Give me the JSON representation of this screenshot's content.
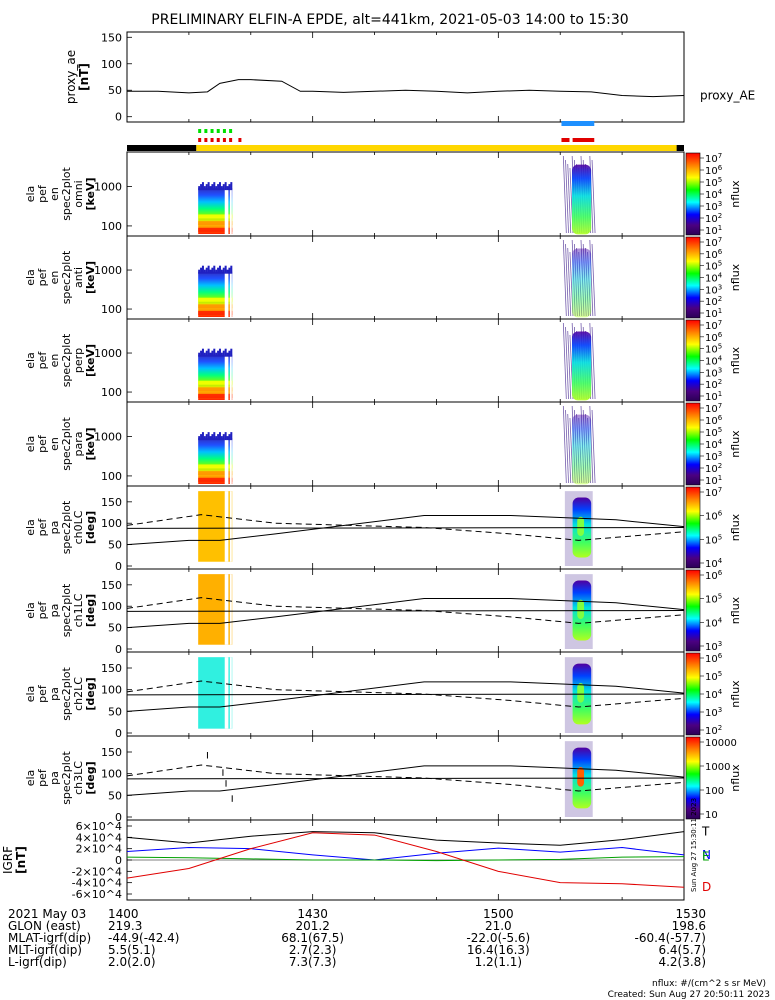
{
  "title": "PRELIMINARY ELFIN-A EPDE, alt=441km, 2021-05-03 14:00 to 15:30",
  "created": "Created: Sun Aug 27 20:50:11 2023",
  "units_note": "nflux: #/(cm^2 s sr MeV)",
  "side_stamp": "Sun Aug 27 15:30:11 2023",
  "colors": {
    "ae_line": "#000000",
    "bar_black": "#000000",
    "bar_yellow": "#ffd700",
    "bar_green": "#00e000",
    "bar_red": "#e00000",
    "bar_blue": "#1e90ff",
    "grf_N": "#0000ff",
    "grf_E": "#00a000",
    "grf_D": "#e00000",
    "grf_T": "#000000"
  },
  "chart_data": [
    {
      "type": "line",
      "name": "proxy_ae",
      "ylabel": "proxy_ae [nT]",
      "legend": "proxy_AE",
      "yticks": [
        "150",
        "100",
        "50",
        "0"
      ],
      "ylim": [
        -10,
        160
      ],
      "x_minutes": [
        0,
        5,
        10,
        13,
        15,
        18,
        20,
        25,
        28,
        30,
        35,
        40,
        45,
        50,
        55,
        60,
        65,
        70,
        75,
        80,
        85,
        90
      ],
      "values": [
        48,
        48,
        45,
        47,
        63,
        70,
        70,
        67,
        48,
        48,
        46,
        48,
        50,
        48,
        45,
        48,
        50,
        48,
        47,
        40,
        38,
        40
      ]
    },
    {
      "type": "heatmap",
      "name": "omni",
      "ylabel": [
        "ela",
        "pef",
        "en",
        "spec2plot",
        "omni",
        "[keV]"
      ],
      "yticks": [
        "1000",
        "100"
      ],
      "colorbar": {
        "label": "nflux",
        "ticks": [
          "10^7",
          "10^6",
          "10^5",
          "10^4",
          "10^3",
          "10^2",
          "10^1"
        ]
      },
      "intervals": [
        [
          11.5,
          17.0
        ],
        [
          70.5,
          75.5
        ]
      ]
    },
    {
      "type": "heatmap",
      "name": "anti",
      "ylabel": [
        "ela",
        "pef",
        "en",
        "spec2plot",
        "anti",
        "[keV]"
      ],
      "yticks": [
        "1000",
        "100"
      ],
      "colorbar": {
        "label": "nflux",
        "ticks": [
          "10^7",
          "10^6",
          "10^5",
          "10^4",
          "10^3",
          "10^2",
          "10^1"
        ]
      },
      "intervals": [
        [
          11.5,
          17.0
        ],
        [
          70.5,
          75.5
        ]
      ]
    },
    {
      "type": "heatmap",
      "name": "perp",
      "ylabel": [
        "ela",
        "pef",
        "en",
        "spec2plot",
        "perp",
        "[keV]"
      ],
      "yticks": [
        "1000",
        "100"
      ],
      "colorbar": {
        "label": "nflux",
        "ticks": [
          "10^7",
          "10^6",
          "10^5",
          "10^4",
          "10^3",
          "10^2",
          "10^1"
        ]
      },
      "intervals": [
        [
          11.5,
          17.0
        ],
        [
          70.5,
          75.5
        ]
      ]
    },
    {
      "type": "heatmap",
      "name": "para",
      "ylabel": [
        "ela",
        "pef",
        "en",
        "spec2plot",
        "para",
        "[keV]"
      ],
      "yticks": [
        "1000",
        "100"
      ],
      "colorbar": {
        "label": "nflux",
        "ticks": [
          "10^7",
          "10^6",
          "10^5",
          "10^4",
          "10^3",
          "10^2",
          "10^1"
        ]
      },
      "intervals": [
        [
          11.5,
          17.0
        ],
        [
          70.5,
          75.5
        ]
      ]
    },
    {
      "type": "heatmap",
      "name": "ch0LC",
      "ylabel": [
        "ela",
        "pef",
        "pa",
        "spec2plot",
        "ch0LC",
        "[deg]"
      ],
      "yticks": [
        "150",
        "100",
        "50",
        "0"
      ],
      "colorbar": {
        "label": "nflux",
        "ticks": [
          "10^7",
          "10^6",
          "10^5",
          "10^4"
        ]
      },
      "intervals": [
        [
          11.5,
          17.0
        ],
        [
          70.5,
          75.5
        ]
      ]
    },
    {
      "type": "heatmap",
      "name": "ch1LC",
      "ylabel": [
        "ela",
        "pef",
        "pa",
        "spec2plot",
        "ch1LC",
        "[deg]"
      ],
      "yticks": [
        "150",
        "100",
        "50",
        "0"
      ],
      "colorbar": {
        "label": "nflux",
        "ticks": [
          "10^6",
          "10^5",
          "10^4",
          "10^3"
        ]
      },
      "intervals": [
        [
          11.5,
          17.0
        ],
        [
          70.5,
          75.5
        ]
      ]
    },
    {
      "type": "heatmap",
      "name": "ch2LC",
      "ylabel": [
        "ela",
        "pef",
        "pa",
        "spec2plot",
        "ch2LC",
        "[deg]"
      ],
      "yticks": [
        "150",
        "100",
        "50",
        "0"
      ],
      "colorbar": {
        "label": "nflux",
        "ticks": [
          "10^6",
          "10^5",
          "10^4",
          "10^3",
          "10^2"
        ]
      },
      "intervals": [
        [
          11.5,
          17.0
        ],
        [
          70.5,
          75.5
        ]
      ]
    },
    {
      "type": "heatmap",
      "name": "ch3LC",
      "ylabel": [
        "ela",
        "pef",
        "pa",
        "spec2plot",
        "ch3LC",
        "[deg]"
      ],
      "yticks": [
        "150",
        "100",
        "50",
        "0"
      ],
      "colorbar": {
        "label": "nflux",
        "ticks": [
          "10000",
          "1000",
          "100",
          "10"
        ]
      },
      "intervals": [
        [
          11.5,
          17.0
        ],
        [
          70.5,
          75.5
        ]
      ]
    },
    {
      "type": "line",
      "name": "IGRF",
      "ylabel": "IGRF [nT]",
      "yticks": [
        "6×10^4",
        "4×10^4",
        "2×10^4",
        "0",
        "-2×10^4",
        "-4×10^4",
        "-6×10^4"
      ],
      "ylim": [
        -60000,
        60000
      ],
      "legend": [
        "T",
        "N",
        "E",
        "D"
      ],
      "x_minutes": [
        0,
        10,
        20,
        30,
        40,
        50,
        60,
        70,
        80,
        90
      ],
      "series": [
        {
          "name": "T",
          "values": [
            40000,
            30000,
            42000,
            50000,
            48000,
            35000,
            30000,
            26000,
            36000,
            50000
          ]
        },
        {
          "name": "N",
          "values": [
            15000,
            22000,
            20000,
            9000,
            0,
            12000,
            21000,
            14000,
            22000,
            9000
          ]
        },
        {
          "name": "E",
          "values": [
            5000,
            4000,
            2000,
            0,
            0,
            -1000,
            0,
            1000,
            5000,
            6000
          ]
        },
        {
          "name": "D",
          "values": [
            -32000,
            -15000,
            20000,
            48000,
            44000,
            15000,
            -20000,
            -40000,
            -42000,
            -48000
          ]
        }
      ]
    }
  ],
  "pa_lines": {
    "solid": [
      [
        0,
        50
      ],
      [
        10,
        60
      ],
      [
        15,
        60
      ],
      [
        24,
        75
      ],
      [
        48,
        118
      ],
      [
        62,
        118
      ],
      [
        79,
        108
      ],
      [
        90,
        92
      ]
    ],
    "dashed": [
      [
        0,
        95
      ],
      [
        12,
        120
      ],
      [
        24,
        100
      ],
      [
        48,
        90
      ],
      [
        62,
        75
      ],
      [
        73,
        60
      ],
      [
        90,
        80
      ]
    ],
    "flat": [
      [
        0,
        88
      ],
      [
        90,
        90
      ]
    ]
  },
  "status_bars": {
    "black_intervals": [
      [
        0,
        11.2
      ],
      [
        88.8,
        90
      ]
    ],
    "yellow_intervals": [
      [
        11.2,
        88.8
      ]
    ],
    "green_ticks": [
      11.5,
      12.5,
      13.5,
      14.5,
      15.5,
      16.5
    ],
    "red_ticks": [
      11.5,
      12.5,
      13.5,
      14.5,
      15.5,
      16.5,
      18.0
    ],
    "red_blocks": [
      [
        70.2,
        71.5
      ],
      [
        72.0,
        75.5
      ]
    ],
    "blue_block": [
      70.2,
      75.5
    ]
  },
  "axis": {
    "time_ticks": [
      {
        "minute": 0,
        "label": "1400"
      },
      {
        "minute": 30,
        "label": "1430"
      },
      {
        "minute": 60,
        "label": "1500"
      },
      {
        "minute": 90,
        "label": "1530"
      }
    ]
  },
  "orbit_table": {
    "rows": [
      {
        "label": "2021 May 03",
        "values": [
          "1400",
          "1430",
          "1500",
          "1530"
        ]
      },
      {
        "label": "GLON (east)",
        "values": [
          "219.3",
          "201.2",
          "21.0",
          "198.6"
        ]
      },
      {
        "label": "MLAT-igrf(dip)",
        "values": [
          "-44.9(-42.4)",
          "68.1(67.5)",
          "-22.0(-5.6)",
          "-60.4(-57.7)"
        ]
      },
      {
        "label": "MLT-igrf(dip)",
        "values": [
          "5.5(5.1)",
          "2.7(2.3)",
          "16.4(16.3)",
          "6.4(5.7)"
        ]
      },
      {
        "label": "L-igrf(dip)",
        "values": [
          "2.0(2.0)",
          "7.3(7.3)",
          "1.2(1.1)",
          "4.2(3.8)"
        ]
      }
    ]
  }
}
